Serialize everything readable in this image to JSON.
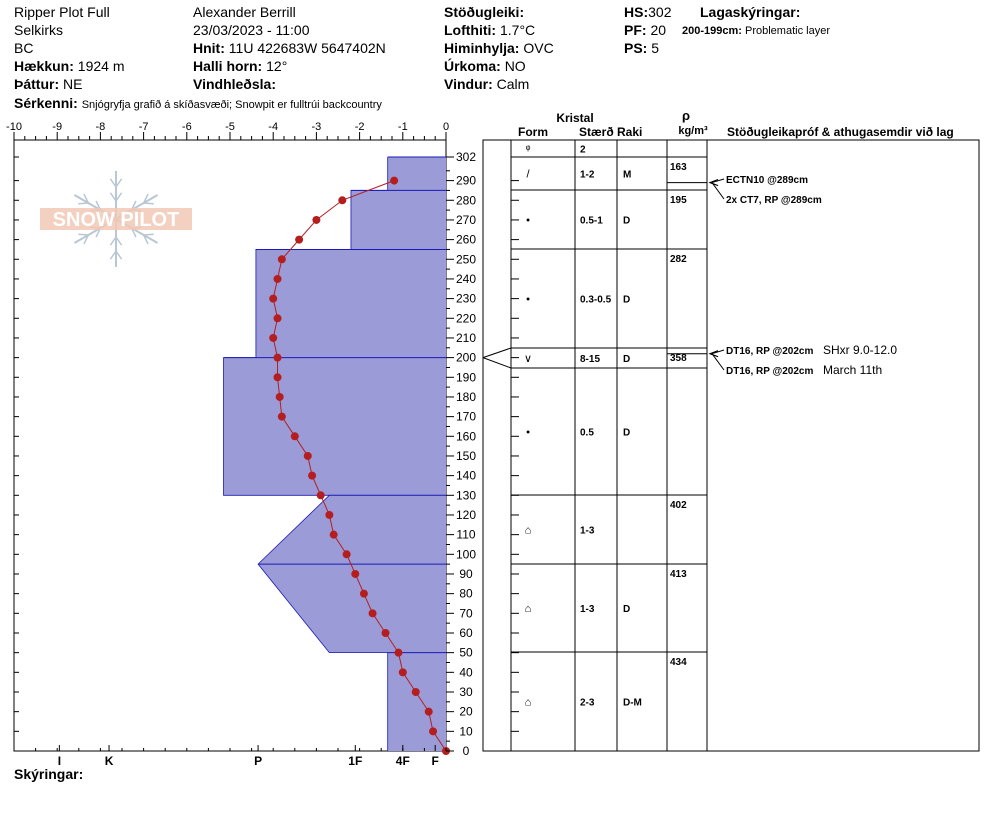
{
  "header": {
    "plot_name": "Ripper Plot Full",
    "range": "Selkirks",
    "region": "BC",
    "elevation_label": "Hækkun:",
    "elevation_value": "1924 m",
    "aspect_label": "Þáttur:",
    "aspect_value": "NE",
    "observer": "Alexander Berrill",
    "datetime": "23/03/2023 - 11:00",
    "coords_label": "Hnit:",
    "coords_value": "11U 422683W 5647402N",
    "slope_label": "Halli horn:",
    "slope_value": "12°",
    "wind_loading_label": "Vindhleðsla:",
    "stability_label": "Stöðugleiki:",
    "air_temp_label": "Lofthiti:",
    "air_temp_value": "1.7°C",
    "sky_label": "Himinhylja:",
    "sky_value": "OVC",
    "precip_label": "Úrkoma:",
    "precip_value": "NO",
    "wind_label": "Vindur:",
    "wind_value": "Calm",
    "hs_label": "HS:",
    "hs_value": "302",
    "pf_label": "PF:",
    "pf_value": "20",
    "ps_label": "PS:",
    "ps_value": "5",
    "legend_label": "Lagaskýringar:",
    "legend_entry_bold": "200-199cm:",
    "legend_entry_text": "Problematic layer",
    "features_label": "Sérkenni:",
    "features_value": "Snjógryfja grafið á skíðasvæði;  Snowpit er fulltrúi backcountry",
    "comments_label": "Skýringar:"
  },
  "table": {
    "kristal": "Kristal",
    "form": "Form",
    "size": "Stærð",
    "wetness": "Raki",
    "rho": "ρ",
    "density_unit": "kg/m³",
    "tests_header": "Stöðugleikapróf & athugasemdir við lag"
  },
  "chart_data": {
    "type": "snow-profile",
    "title": "Ripper Plot Full",
    "x_axis": {
      "ticks": [
        "-10",
        "-9",
        "-8",
        "-7",
        "-6",
        "-5",
        "-4",
        "-3",
        "-2",
        "-1",
        "0"
      ],
      "range": [
        -10,
        0
      ],
      "unit": "°C"
    },
    "y_axis": {
      "ticks": [
        "0",
        "10",
        "20",
        "30",
        "40",
        "50",
        "60",
        "70",
        "80",
        "90",
        "100",
        "110",
        "120",
        "130",
        "140",
        "150",
        "160",
        "170",
        "180",
        "190",
        "200",
        "210",
        "220",
        "230",
        "240",
        "250",
        "260",
        "270",
        "280",
        "290",
        "302"
      ],
      "range": [
        0,
        302
      ],
      "unit": "cm"
    },
    "hardness_scale": {
      "labels": [
        "I",
        "K",
        "P",
        "1F",
        "4F",
        "F"
      ],
      "label_positions_in_temp_units": [
        -8.95,
        -7.8,
        -4.35,
        -2.1,
        -1.0,
        -0.25
      ]
    },
    "hardness_profile": [
      {
        "from": 0,
        "to": 50,
        "hardness": "4F",
        "top_value": -1.35,
        "bottom_value": -1.35
      },
      {
        "from": 50,
        "to": 95,
        "hardness_bottom": "1F-",
        "bottom_value": -2.7,
        "top_value": -4.35
      },
      {
        "from": 95,
        "to": 130,
        "top_value": -2.7,
        "bottom_value": -4.35
      },
      {
        "from": 130,
        "to": 200,
        "hardness": "P-",
        "top_value": -5.15,
        "bottom_value": -5.15
      },
      {
        "from": 200,
        "to": 255,
        "hardness": "P",
        "top_value": -4.4,
        "bottom_value": -4.4
      },
      {
        "from": 255,
        "to": 285,
        "hardness": "1F",
        "top_value": -2.2,
        "bottom_value": -2.2
      },
      {
        "from": 285,
        "to": 302,
        "hardness": "4F",
        "top_value": -1.35,
        "bottom_value": -1.35
      }
    ],
    "temperature_series": {
      "name": "",
      "points": [
        {
          "depth": 0,
          "temp": 0.0
        },
        {
          "depth": 10,
          "temp": -0.3
        },
        {
          "depth": 20,
          "temp": -0.4
        },
        {
          "depth": 30,
          "temp": -0.7
        },
        {
          "depth": 40,
          "temp": -1.0
        },
        {
          "depth": 50,
          "temp": -1.1
        },
        {
          "depth": 60,
          "temp": -1.4
        },
        {
          "depth": 70,
          "temp": -1.7
        },
        {
          "depth": 80,
          "temp": -1.9
        },
        {
          "depth": 90,
          "temp": -2.1
        },
        {
          "depth": 100,
          "temp": -2.3
        },
        {
          "depth": 110,
          "temp": -2.6
        },
        {
          "depth": 120,
          "temp": -2.7
        },
        {
          "depth": 130,
          "temp": -2.9
        },
        {
          "depth": 140,
          "temp": -3.1
        },
        {
          "depth": 150,
          "temp": -3.2
        },
        {
          "depth": 160,
          "temp": -3.5
        },
        {
          "depth": 170,
          "temp": -3.8
        },
        {
          "depth": 180,
          "temp": -3.85
        },
        {
          "depth": 190,
          "temp": -3.9
        },
        {
          "depth": 200,
          "temp": -3.9
        },
        {
          "depth": 210,
          "temp": -4.0
        },
        {
          "depth": 220,
          "temp": -3.9
        },
        {
          "depth": 230,
          "temp": -4.0
        },
        {
          "depth": 240,
          "temp": -3.9
        },
        {
          "depth": 250,
          "temp": -3.8
        },
        {
          "depth": 260,
          "temp": -3.4
        },
        {
          "depth": 270,
          "temp": -3.0
        },
        {
          "depth": 280,
          "temp": -2.4
        },
        {
          "depth": 290,
          "temp": -1.2
        }
      ]
    },
    "layers": [
      {
        "top": 302,
        "bottom": 295,
        "form": "ᵠ",
        "size": "2",
        "wetness": "",
        "density": ""
      },
      {
        "top": 295,
        "bottom": 285,
        "form": "/",
        "size": "1-2",
        "wetness": "M",
        "density": "163"
      },
      {
        "top": 285,
        "bottom": 255,
        "form": "•",
        "size": "0.5-1",
        "wetness": "D",
        "density": "195"
      },
      {
        "top": 255,
        "bottom": 205,
        "form": "•",
        "size": "0.3-0.5",
        "wetness": "D",
        "density": "282"
      },
      {
        "top": 205,
        "bottom": 195,
        "form": "∨",
        "size": "8-15",
        "wetness": "D",
        "density": "358"
      },
      {
        "top": 195,
        "bottom": 130,
        "form": "•",
        "size": "0.5",
        "wetness": "D",
        "density": ""
      },
      {
        "top": 130,
        "bottom": 95,
        "form": "⌂",
        "size": "1-3",
        "wetness": "",
        "density": "402"
      },
      {
        "top": 95,
        "bottom": 50,
        "form": "⌂",
        "size": "1-3",
        "wetness": "D",
        "density": "413"
      },
      {
        "top": 50,
        "bottom": 0,
        "form": "⌂",
        "size": "2-3",
        "wetness": "D-M",
        "density": "434"
      }
    ],
    "tests": [
      {
        "depth": 289,
        "label": "ECTN10 @289cm",
        "extra": ""
      },
      {
        "depth": 289,
        "label": "2x CT7, RP @289cm",
        "extra": ""
      },
      {
        "depth": 202,
        "label": "DT16, RP @202cm",
        "extra": "SHxr 9.0-12.0"
      },
      {
        "depth": 202,
        "label": "DT16, RP @202cm",
        "extra": "March 11th"
      }
    ],
    "colors": {
      "hardness_fill": "#9b9bd7",
      "hardness_line": "#1a1ab8",
      "temperature": "#b41e1e"
    },
    "watermark": "SNOW PILOT"
  }
}
